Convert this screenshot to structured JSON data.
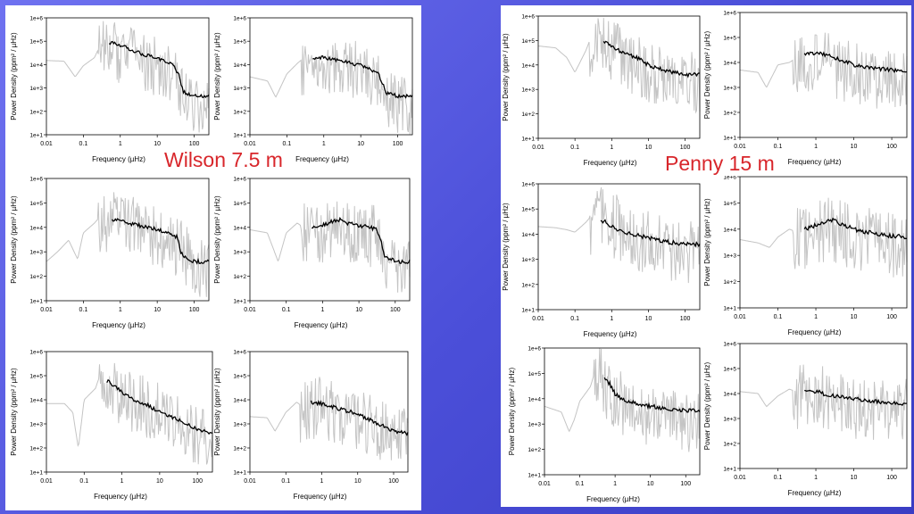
{
  "colors": {
    "background": "#5457e0",
    "raw": "#c4c4c4",
    "smooth": "#000000",
    "annotation": "#d8262b"
  },
  "labels": {
    "wilson": "Wilson 7.5 m",
    "penny": "Penny 15 m"
  },
  "chart_data": [
    {
      "type": "line",
      "group": "Wilson 7.5 m",
      "xlabel": "Frequency (µHz)",
      "ylabel": "Power Density (ppm² / µHz)",
      "xscale": "log",
      "yscale": "log",
      "xlim": [
        0.01,
        250
      ],
      "ylim": [
        10,
        1000000
      ],
      "xticks": [
        "0.01",
        "0.1",
        "1",
        "10",
        "100"
      ],
      "yticks": [
        "1e+1",
        "1e+2",
        "1e+3",
        "1e+4",
        "1e+5",
        "1e+6"
      ],
      "grid": false,
      "legend": "none",
      "series": [
        {
          "role": "raw",
          "x": [
            0.01,
            0.03,
            0.06,
            0.1,
            0.2,
            0.3,
            0.5,
            1,
            3,
            10,
            30,
            50,
            100,
            250
          ],
          "y": [
            15000,
            14000,
            3000,
            9000,
            20000,
            80000,
            100000,
            60000,
            30000,
            15000,
            8000,
            1000,
            400,
            300
          ]
        },
        {
          "role": "smoothed",
          "x": [
            0.5,
            1,
            2,
            5,
            10,
            20,
            30,
            40,
            50,
            100,
            250
          ],
          "y": [
            90000,
            70000,
            40000,
            25000,
            18000,
            12000,
            8000,
            3000,
            700,
            450,
            450
          ]
        }
      ]
    },
    {
      "type": "line",
      "group": "Wilson 7.5 m",
      "xlabel": "Frequency (µHz)",
      "ylabel": "Power Density (ppm² / µHz)",
      "xscale": "log",
      "yscale": "log",
      "xlim": [
        0.01,
        250
      ],
      "ylim": [
        10,
        1000000
      ],
      "xticks": [
        "0.01",
        "0.1",
        "1",
        "10",
        "100"
      ],
      "yticks": [
        "1e+1",
        "1e+2",
        "1e+3",
        "1e+4",
        "1e+5",
        "1e+6"
      ],
      "grid": false,
      "legend": "none",
      "series": [
        {
          "role": "raw",
          "x": [
            0.01,
            0.03,
            0.05,
            0.1,
            0.2,
            0.3,
            0.5,
            1,
            3,
            10,
            30,
            50,
            100,
            250
          ],
          "y": [
            3000,
            2000,
            400,
            4000,
            12000,
            20000,
            25000,
            20000,
            15000,
            10000,
            5000,
            800,
            400,
            400
          ]
        },
        {
          "role": "smoothed",
          "x": [
            0.5,
            1,
            2,
            5,
            10,
            20,
            30,
            40,
            50,
            100,
            250
          ],
          "y": [
            18000,
            20000,
            16000,
            12000,
            9000,
            6000,
            4000,
            1500,
            600,
            450,
            450
          ]
        }
      ]
    },
    {
      "type": "line",
      "group": "Wilson 7.5 m",
      "xlabel": "Frequency (µHz)",
      "ylabel": "Power Density (ppm² / µHz)",
      "xscale": "log",
      "yscale": "log",
      "xlim": [
        0.01,
        250
      ],
      "ylim": [
        10,
        1000000
      ],
      "xticks": [
        "0.01",
        "0.1",
        "1",
        "10",
        "100"
      ],
      "yticks": [
        "1e+1",
        "1e+2",
        "1e+3",
        "1e+4",
        "1e+5",
        "1e+6"
      ],
      "grid": false,
      "legend": "none",
      "series": [
        {
          "role": "raw",
          "x": [
            0.01,
            0.02,
            0.04,
            0.07,
            0.1,
            0.2,
            0.3,
            0.5,
            1,
            3,
            10,
            30,
            100,
            250
          ],
          "y": [
            400,
            1000,
            3000,
            500,
            6000,
            15000,
            30000,
            40000,
            30000,
            20000,
            10000,
            4000,
            600,
            400
          ]
        },
        {
          "role": "smoothed",
          "x": [
            0.6,
            1,
            2,
            5,
            10,
            20,
            35,
            40,
            50,
            100,
            250
          ],
          "y": [
            22000,
            18000,
            14000,
            10000,
            8000,
            6000,
            4000,
            1500,
            600,
            400,
            400
          ]
        }
      ]
    },
    {
      "type": "line",
      "group": "Wilson 7.5 m",
      "xlabel": "Frequency (µHz)",
      "ylabel": "Power Density (ppm² / µHz)",
      "xscale": "log",
      "yscale": "log",
      "xlim": [
        0.01,
        250
      ],
      "ylim": [
        10,
        1000000
      ],
      "xticks": [
        "0.01",
        "0.1",
        "1",
        "10",
        "100"
      ],
      "yticks": [
        "1e+1",
        "1e+2",
        "1e+3",
        "1e+4",
        "1e+5",
        "1e+6"
      ],
      "grid": false,
      "legend": "none",
      "series": [
        {
          "role": "raw",
          "x": [
            0.01,
            0.03,
            0.06,
            0.1,
            0.2,
            0.3,
            0.5,
            1,
            3,
            10,
            30,
            50,
            100,
            250
          ],
          "y": [
            8000,
            6000,
            400,
            6000,
            15000,
            10000,
            12000,
            15000,
            20000,
            12000,
            8000,
            1000,
            400,
            400
          ]
        },
        {
          "role": "smoothed",
          "x": [
            0.5,
            1,
            2,
            3,
            5,
            10,
            20,
            30,
            40,
            50,
            100,
            250
          ],
          "y": [
            10000,
            12000,
            18000,
            20000,
            15000,
            12000,
            10000,
            8000,
            3000,
            700,
            400,
            400
          ]
        }
      ]
    },
    {
      "type": "line",
      "group": "Wilson 7.5 m",
      "xlabel": "Frequency (µHz)",
      "ylabel": "Power Density (ppm² / µHz)",
      "xscale": "log",
      "yscale": "log",
      "xlim": [
        0.01,
        250
      ],
      "ylim": [
        10,
        1000000
      ],
      "xticks": [
        "0.01",
        "0.1",
        "1",
        "10",
        "100"
      ],
      "yticks": [
        "1e+1",
        "1e+2",
        "1e+3",
        "1e+4",
        "1e+5",
        "1e+6"
      ],
      "grid": false,
      "legend": "none",
      "series": [
        {
          "role": "raw",
          "x": [
            0.01,
            0.03,
            0.05,
            0.07,
            0.1,
            0.2,
            0.3,
            0.5,
            1,
            3,
            10,
            30,
            100,
            250
          ],
          "y": [
            7000,
            7000,
            3000,
            100,
            10000,
            30000,
            200000,
            100000,
            30000,
            12000,
            5000,
            2000,
            600,
            400
          ]
        },
        {
          "role": "smoothed",
          "x": [
            0.4,
            0.6,
            1,
            2,
            5,
            10,
            30,
            100,
            250
          ],
          "y": [
            60000,
            40000,
            20000,
            10000,
            6000,
            3000,
            1500,
            600,
            400
          ]
        }
      ]
    },
    {
      "type": "line",
      "group": "Wilson 7.5 m",
      "xlabel": "Frequency (µHz)",
      "ylabel": "Power Density (ppm² / µHz)",
      "xscale": "log",
      "yscale": "log",
      "xlim": [
        0.01,
        250
      ],
      "ylim": [
        10,
        1000000
      ],
      "xticks": [
        "0.01",
        "0.1",
        "1",
        "10",
        "100"
      ],
      "yticks": [
        "1e+1",
        "1e+2",
        "1e+3",
        "1e+4",
        "1e+5",
        "1e+6"
      ],
      "grid": false,
      "legend": "none",
      "series": [
        {
          "role": "raw",
          "x": [
            0.01,
            0.03,
            0.05,
            0.1,
            0.2,
            0.3,
            0.5,
            1,
            3,
            10,
            30,
            100,
            250
          ],
          "y": [
            2000,
            1800,
            500,
            3000,
            8000,
            5000,
            8000,
            10000,
            5000,
            3000,
            1500,
            600,
            500
          ]
        },
        {
          "role": "smoothed",
          "x": [
            0.5,
            1,
            2,
            5,
            10,
            30,
            100,
            250
          ],
          "y": [
            8000,
            7000,
            5000,
            3500,
            2500,
            1200,
            500,
            400
          ]
        }
      ]
    },
    {
      "type": "line",
      "group": "Penny 15 m",
      "xlabel": "Frequency (µHz)",
      "ylabel": "Power Density (ppm² / µHz)",
      "xscale": "log",
      "yscale": "log",
      "xlim": [
        0.01,
        250
      ],
      "ylim": [
        10,
        1000000
      ],
      "xticks": [
        "0.01",
        "0.1",
        "1",
        "10",
        "100"
      ],
      "yticks": [
        "1e+1",
        "1e+2",
        "1e+3",
        "1e+4",
        "1e+5",
        "1e+6"
      ],
      "grid": false,
      "legend": "none",
      "series": [
        {
          "role": "raw",
          "x": [
            0.01,
            0.03,
            0.06,
            0.1,
            0.2,
            0.3,
            0.5,
            1,
            3,
            10,
            30,
            100,
            250
          ],
          "y": [
            60000,
            50000,
            20000,
            5000,
            40000,
            200000,
            150000,
            80000,
            30000,
            10000,
            6000,
            4000,
            4000
          ]
        },
        {
          "role": "smoothed",
          "x": [
            0.6,
            1,
            2,
            5,
            10,
            20,
            50,
            100,
            250
          ],
          "y": [
            100000,
            60000,
            30000,
            20000,
            10000,
            7000,
            5000,
            4000,
            4000
          ]
        }
      ]
    },
    {
      "type": "line",
      "group": "Penny 15 m",
      "xlabel": "Frequency (µHz)",
      "ylabel": "Power Density (ppm² / µHz)",
      "xscale": "log",
      "yscale": "log",
      "xlim": [
        0.01,
        250
      ],
      "ylim": [
        10,
        1000000
      ],
      "xticks": [
        "0.01",
        "0.1",
        "1",
        "10",
        "100"
      ],
      "yticks": [
        "1e+1",
        "1e+2",
        "1e+3",
        "1e+4",
        "1e+5",
        "1e+6"
      ],
      "grid": false,
      "legend": "none",
      "series": [
        {
          "role": "raw",
          "x": [
            0.01,
            0.03,
            0.05,
            0.1,
            0.2,
            0.3,
            0.5,
            1,
            3,
            10,
            30,
            100,
            250
          ],
          "y": [
            5000,
            4000,
            1000,
            8000,
            10000,
            15000,
            20000,
            25000,
            15000,
            8000,
            6000,
            5000,
            4000
          ]
        },
        {
          "role": "smoothed",
          "x": [
            0.5,
            1,
            2,
            5,
            10,
            30,
            100,
            250
          ],
          "y": [
            20000,
            25000,
            20000,
            12000,
            8000,
            6000,
            5000,
            4000
          ]
        }
      ]
    },
    {
      "type": "line",
      "group": "Penny 15 m",
      "xlabel": "Frequency (µHz)",
      "ylabel": "Power Density (ppm² / µHz)",
      "xscale": "log",
      "yscale": "log",
      "xlim": [
        0.01,
        250
      ],
      "ylim": [
        10,
        1000000
      ],
      "xticks": [
        "0.01",
        "0.1",
        "1",
        "10",
        "100"
      ],
      "yticks": [
        "1e+1",
        "1e+2",
        "1e+3",
        "1e+4",
        "1e+5",
        "1e+6"
      ],
      "grid": false,
      "legend": "none",
      "series": [
        {
          "role": "raw",
          "x": [
            0.01,
            0.03,
            0.06,
            0.1,
            0.2,
            0.3,
            0.5,
            1,
            3,
            10,
            30,
            100,
            250
          ],
          "y": [
            20000,
            18000,
            15000,
            12000,
            30000,
            60000,
            80000,
            50000,
            20000,
            10000,
            6000,
            4000,
            4000
          ]
        },
        {
          "role": "smoothed",
          "x": [
            0.5,
            0.7,
            1,
            2,
            5,
            10,
            30,
            100,
            250
          ],
          "y": [
            35000,
            30000,
            20000,
            12000,
            9000,
            7000,
            5000,
            4000,
            4000
          ]
        }
      ]
    },
    {
      "type": "line",
      "group": "Penny 15 m",
      "xlabel": "Frequency (µHz)",
      "ylabel": "Power Density (ppm² / µHz)",
      "xscale": "log",
      "yscale": "log",
      "xlim": [
        0.01,
        250
      ],
      "ylim": [
        10,
        1000000
      ],
      "xticks": [
        "0.01",
        "0.1",
        "1",
        "10",
        "100"
      ],
      "yticks": [
        "1e+1",
        "1e+2",
        "1e+3",
        "1e+4",
        "1e+5",
        "1e+6"
      ],
      "grid": false,
      "legend": "none",
      "series": [
        {
          "role": "raw",
          "x": [
            0.01,
            0.03,
            0.06,
            0.1,
            0.2,
            0.3,
            0.5,
            1,
            3,
            10,
            30,
            100,
            250
          ],
          "y": [
            4000,
            3000,
            2000,
            5000,
            10000,
            8000,
            12000,
            20000,
            20000,
            12000,
            8000,
            6000,
            5000
          ]
        },
        {
          "role": "smoothed",
          "x": [
            0.5,
            1,
            2,
            3,
            5,
            10,
            30,
            100,
            250
          ],
          "y": [
            10000,
            14000,
            20000,
            22000,
            15000,
            10000,
            7000,
            5500,
            5000
          ]
        }
      ]
    },
    {
      "type": "line",
      "group": "Penny 15 m",
      "xlabel": "Frequency (µHz)",
      "ylabel": "Power Density (ppm² / µHz)",
      "xscale": "log",
      "yscale": "log",
      "xlim": [
        0.01,
        250
      ],
      "ylim": [
        10,
        1000000
      ],
      "xticks": [
        "0.01",
        "0.1",
        "1",
        "10",
        "100"
      ],
      "yticks": [
        "1e+1",
        "1e+2",
        "1e+3",
        "1e+4",
        "1e+5",
        "1e+6"
      ],
      "grid": false,
      "legend": "none",
      "series": [
        {
          "role": "raw",
          "x": [
            0.01,
            0.03,
            0.05,
            0.07,
            0.1,
            0.2,
            0.3,
            0.5,
            1,
            3,
            10,
            30,
            100,
            250
          ],
          "y": [
            5000,
            3000,
            500,
            1500,
            8000,
            30000,
            200000,
            80000,
            20000,
            10000,
            5000,
            4000,
            3000,
            3000
          ]
        },
        {
          "role": "smoothed",
          "x": [
            0.5,
            0.7,
            1,
            2,
            5,
            10,
            30,
            100,
            250
          ],
          "y": [
            60000,
            40000,
            15000,
            8000,
            6000,
            5000,
            4000,
            3500,
            3500
          ]
        }
      ]
    },
    {
      "type": "line",
      "group": "Penny 15 m",
      "xlabel": "Frequency (µHz)",
      "ylabel": "Power Density (ppm² / µHz)",
      "xscale": "log",
      "yscale": "log",
      "xlim": [
        0.01,
        250
      ],
      "ylim": [
        10,
        1000000
      ],
      "xticks": [
        "0.01",
        "0.1",
        "1",
        "10",
        "100"
      ],
      "yticks": [
        "1e+1",
        "1e+2",
        "1e+3",
        "1e+4",
        "1e+5",
        "1e+6"
      ],
      "grid": false,
      "legend": "none",
      "series": [
        {
          "role": "raw",
          "x": [
            0.01,
            0.03,
            0.05,
            0.1,
            0.2,
            0.3,
            0.5,
            1,
            3,
            10,
            30,
            100,
            250
          ],
          "y": [
            12000,
            10000,
            3000,
            8000,
            15000,
            12000,
            20000,
            18000,
            10000,
            6000,
            5000,
            4000,
            4000
          ]
        },
        {
          "role": "smoothed",
          "x": [
            0.5,
            1,
            2,
            5,
            10,
            30,
            100,
            250
          ],
          "y": [
            12000,
            12000,
            9000,
            7000,
            6000,
            5000,
            4000,
            4000
          ]
        }
      ]
    }
  ]
}
